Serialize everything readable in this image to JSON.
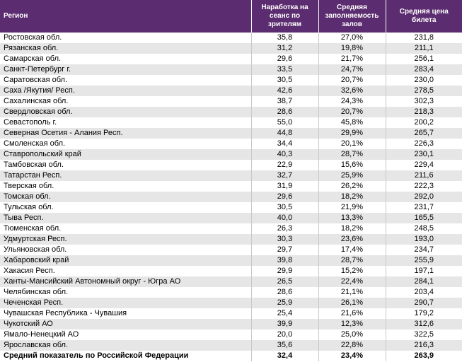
{
  "table": {
    "header": [
      "Регион",
      "Наработка на сеанс по зрителям",
      "Средняя заполняемость залов",
      "Средняя цена билета"
    ],
    "rows": [
      [
        "Ростовская обл.",
        "35,8",
        "27,0%",
        "231,8"
      ],
      [
        "Рязанская обл.",
        "31,2",
        "19,8%",
        "211,1"
      ],
      [
        "Самарская обл.",
        "29,6",
        "21,7%",
        "256,1"
      ],
      [
        "Санкт-Петербург г.",
        "33,5",
        "24,7%",
        "283,4"
      ],
      [
        "Саратовская обл.",
        "30,5",
        "20,7%",
        "230,0"
      ],
      [
        "Саха /Якутия/ Респ.",
        "42,6",
        "32,6%",
        "278,5"
      ],
      [
        "Сахалинская обл.",
        "38,7",
        "24,3%",
        "302,3"
      ],
      [
        "Свердловская обл.",
        "28,6",
        "20,7%",
        "218,3"
      ],
      [
        "Севастополь г.",
        "55,0",
        "45,8%",
        "200,2"
      ],
      [
        "Северная Осетия - Алания Респ.",
        "44,8",
        "29,9%",
        "265,7"
      ],
      [
        "Смоленская обл.",
        "34,4",
        "20,1%",
        "226,3"
      ],
      [
        "Ставропольский край",
        "40,3",
        "28,7%",
        "230,1"
      ],
      [
        "Тамбовская обл.",
        "22,9",
        "15,6%",
        "229,4"
      ],
      [
        "Татарстан Респ.",
        "32,7",
        "25,9%",
        "211,6"
      ],
      [
        "Тверская обл.",
        "31,9",
        "26,2%",
        "222,3"
      ],
      [
        "Томская обл.",
        "29,6",
        "18,2%",
        "292,0"
      ],
      [
        "Тульская обл.",
        "30,5",
        "21,9%",
        "231,7"
      ],
      [
        "Тыва Респ.",
        "40,0",
        "13,3%",
        "165,5"
      ],
      [
        "Тюменская обл.",
        "26,3",
        "18,2%",
        "248,5"
      ],
      [
        "Удмуртская Респ.",
        "30,3",
        "23,6%",
        "193,0"
      ],
      [
        "Ульяновская обл.",
        "29,7",
        "17,4%",
        "234,7"
      ],
      [
        "Хабаровский край",
        "39,8",
        "28,7%",
        "255,9"
      ],
      [
        "Хакасия Респ.",
        "29,9",
        "15,2%",
        "197,1"
      ],
      [
        "Ханты-Мансийский Автономный округ - Югра АО",
        "26,5",
        "22,4%",
        "284,1"
      ],
      [
        "Челябинская обл.",
        "28,6",
        "21,1%",
        "203,4"
      ],
      [
        "Чеченская Респ.",
        "25,9",
        "26,1%",
        "290,7"
      ],
      [
        "Чувашская Республика - Чувашия",
        "25,4",
        "21,6%",
        "179,2"
      ],
      [
        "Чукотский АО",
        "39,9",
        "12,3%",
        "312,6"
      ],
      [
        "Ямало-Ненецкий АО",
        "20,0",
        "25,0%",
        "322,5"
      ],
      [
        "Ярославская обл.",
        "35,6",
        "22,8%",
        "216,3"
      ]
    ],
    "total": [
      "Средний показатель по Российской Федерации",
      "32,4",
      "23,4%",
      "263,9"
    ]
  }
}
